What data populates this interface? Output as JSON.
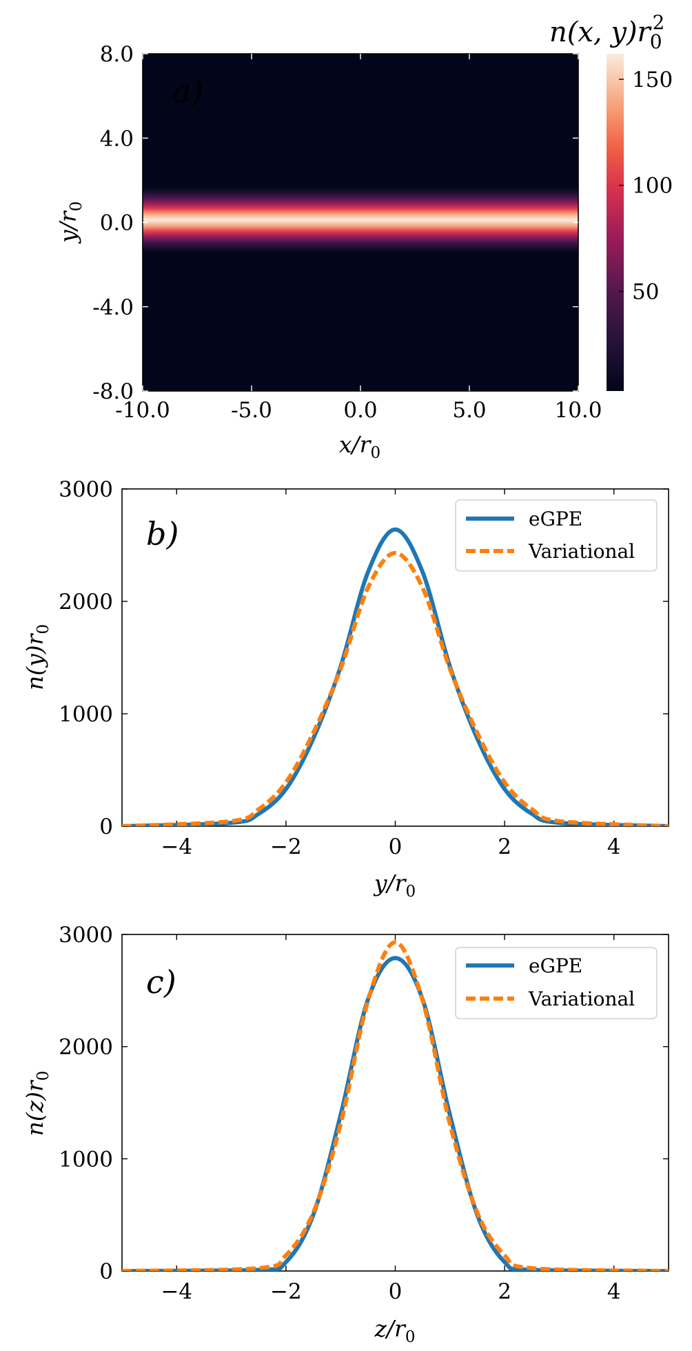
{
  "colors": {
    "egpe": "#1f77b4",
    "variational": "#ff7f0e",
    "heatmap_low": "#03051a",
    "heatmap_high": "#faebdd"
  },
  "chart_data": [
    {
      "type": "heatmap",
      "panel_label": "a)",
      "xlabel": "x/r0",
      "ylabel": "y/r0",
      "xlim": [
        -10,
        10
      ],
      "ylim": [
        -8,
        8
      ],
      "xticks": [
        -10,
        -5,
        0,
        5,
        10
      ],
      "xtick_labels": [
        "-10.0",
        "-5.0",
        "0.0",
        "5.0",
        "10.0"
      ],
      "yticks": [
        8,
        4,
        0,
        -4,
        -8
      ],
      "ytick_labels": [
        "8.0",
        "4.0",
        "0.0",
        "-4.0",
        "-8.0"
      ],
      "colormap": "rocket",
      "density_profile": {
        "description": "n(x,y) uniform along x, Gaussian in y",
        "peak": 160,
        "center_y": 0.1,
        "width_y": 0.75
      },
      "colorbar": {
        "title": "n(x,y)r0^2",
        "range": [
          3,
          162
        ],
        "ticks": [
          50,
          100,
          150
        ],
        "tick_labels": [
          "50",
          "100",
          "150"
        ]
      }
    },
    {
      "type": "line",
      "panel_label": "b)",
      "xlabel": "y/r0",
      "ylabel": "n(y)r0",
      "xlim": [
        -5,
        5
      ],
      "ylim": [
        0,
        3000
      ],
      "xticks": [
        -4,
        -2,
        0,
        2,
        4
      ],
      "xtick_labels": [
        "−4",
        "−2",
        "0",
        "2",
        "4"
      ],
      "yticks": [
        0,
        1000,
        2000,
        3000
      ],
      "ytick_labels": [
        "0",
        "1000",
        "2000",
        "3000"
      ],
      "legend_position": "upper right",
      "series": [
        {
          "name": "eGPE",
          "style": "solid",
          "x": [
            -5,
            -3,
            -2.5,
            -2,
            -1.5,
            -1,
            -0.5,
            0,
            0.5,
            1,
            1.5,
            2,
            2.5,
            3,
            5
          ],
          "y": [
            0,
            30,
            110,
            330,
            780,
            1420,
            2260,
            2640,
            2260,
            1420,
            780,
            330,
            110,
            30,
            0
          ]
        },
        {
          "name": "Variational",
          "style": "dashed",
          "x": [
            -5,
            -3,
            -2.5,
            -2,
            -1.5,
            -1,
            -0.5,
            0,
            0.5,
            1,
            1.5,
            2,
            2.5,
            3,
            5
          ],
          "y": [
            0,
            45,
            150,
            390,
            830,
            1400,
            2120,
            2430,
            2120,
            1400,
            830,
            390,
            150,
            45,
            0
          ]
        }
      ]
    },
    {
      "type": "line",
      "panel_label": "c)",
      "xlabel": "z/r0",
      "ylabel": "n(z)r0",
      "xlim": [
        -5,
        5
      ],
      "ylim": [
        0,
        3000
      ],
      "xticks": [
        -4,
        -2,
        0,
        2,
        4
      ],
      "xtick_labels": [
        "−4",
        "−2",
        "0",
        "2",
        "4"
      ],
      "yticks": [
        0,
        1000,
        2000,
        3000
      ],
      "ytick_labels": [
        "0",
        "1000",
        "2000",
        "3000"
      ],
      "legend_position": "upper right",
      "series": [
        {
          "name": "eGPE",
          "style": "solid",
          "x": [
            -5,
            -2.5,
            -2,
            -1.5,
            -1,
            -0.5,
            0,
            0.5,
            1,
            1.5,
            2,
            2.5,
            5
          ],
          "y": [
            0,
            10,
            80,
            500,
            1390,
            2420,
            2790,
            2420,
            1390,
            500,
            80,
            10,
            0
          ]
        },
        {
          "name": "Variational",
          "style": "dashed",
          "x": [
            -5,
            -2.5,
            -2,
            -1.5,
            -1,
            -0.5,
            0,
            0.5,
            1,
            1.5,
            2,
            2.5,
            5
          ],
          "y": [
            0,
            25,
            140,
            520,
            1310,
            2410,
            2930,
            2410,
            1310,
            520,
            140,
            25,
            0
          ]
        }
      ]
    }
  ]
}
